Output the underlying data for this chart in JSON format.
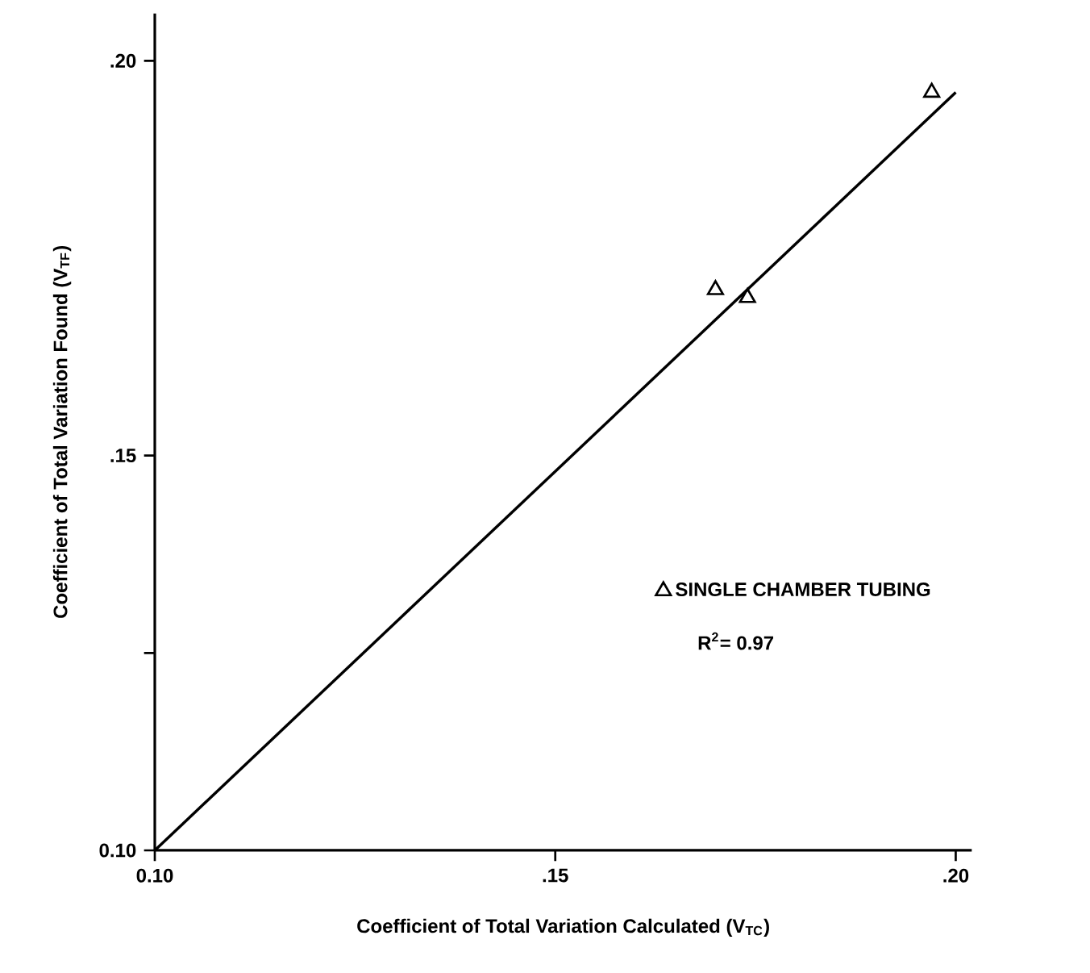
{
  "chart_data": {
    "type": "scatter",
    "xlabel": "Coefficient of Total Variation Calculated (V$_{TC}$)",
    "ylabel": "Coefficient of Total Variation Found (V$_{TF}$)",
    "xlim": [
      0.1,
      0.202
    ],
    "ylim": [
      0.1,
      0.206
    ],
    "xticks": [
      {
        "value": 0.1,
        "label": "0.10"
      },
      {
        "value": 0.15,
        "label": ".15"
      },
      {
        "value": 0.2,
        "label": ".20"
      }
    ],
    "yticks": [
      {
        "value": 0.1,
        "label": "0.10"
      },
      {
        "value": 0.125,
        "label": null
      },
      {
        "value": 0.15,
        "label": ".15"
      },
      {
        "value": 0.2,
        "label": ".20"
      }
    ],
    "series": [
      {
        "name": "SINGLE CHAMBER TUBING",
        "color": "#000000",
        "marker": "triangle",
        "x": [
          0.17,
          0.174,
          0.197
        ],
        "values": [
          0.171,
          0.17,
          0.196
        ]
      },
      {
        "type": "line",
        "color": "#000000",
        "line_style": "solid",
        "x": [
          0.1,
          0.2
        ],
        "values": [
          0.1,
          0.196
        ]
      }
    ],
    "legend": "right",
    "annotations": [
      "R$^{2}$= 0.97"
    ]
  }
}
